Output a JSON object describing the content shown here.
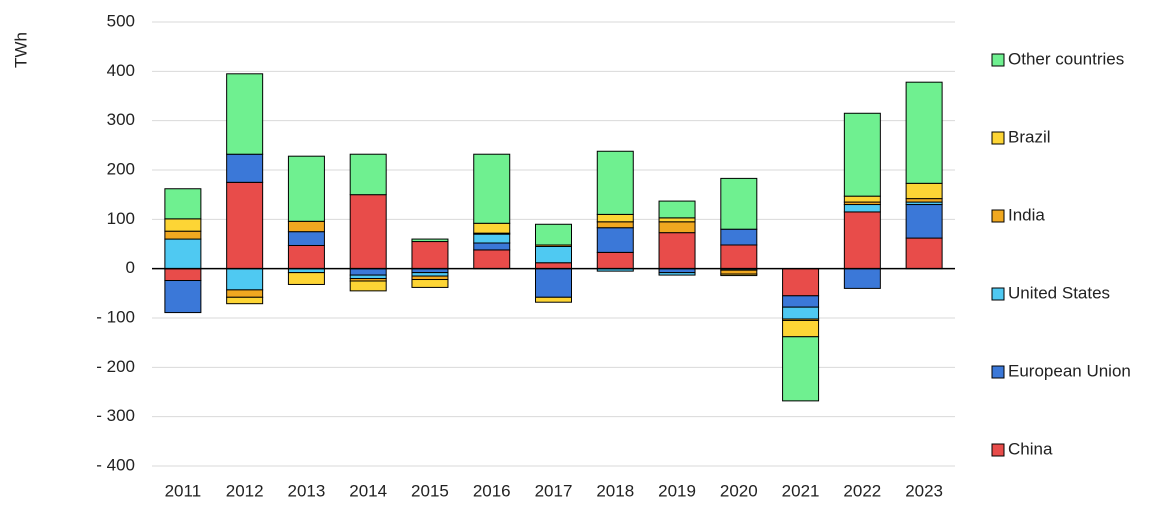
{
  "chart_data": {
    "type": "bar",
    "stacked": true,
    "y_label": "TWh",
    "categories": [
      "2011",
      "2012",
      "2013",
      "2014",
      "2015",
      "2016",
      "2017",
      "2018",
      "2019",
      "2020",
      "2021",
      "2022",
      "2023"
    ],
    "series": [
      {
        "name": "China",
        "color": "#e84c4a",
        "values": [
          -24,
          175,
          47,
          150,
          55,
          38,
          12,
          33,
          73,
          48,
          -55,
          115,
          62
        ]
      },
      {
        "name": "European Union",
        "color": "#3b78d8",
        "values": [
          -65,
          57,
          28,
          -13,
          -8,
          14,
          -58,
          50,
          -8,
          32,
          -23,
          -40,
          68
        ]
      },
      {
        "name": "United States",
        "color": "#4fc9f2",
        "values": [
          60,
          -43,
          -8,
          -7,
          -7,
          18,
          33,
          -5,
          -5,
          -3,
          -24,
          15,
          5
        ]
      },
      {
        "name": "India",
        "color": "#f0a820",
        "values": [
          16,
          -15,
          21,
          -5,
          -7,
          2,
          3,
          12,
          22,
          -8,
          -3,
          5,
          7
        ]
      },
      {
        "name": "Brazil",
        "color": "#fdd535",
        "values": [
          25,
          -13,
          -24,
          -20,
          -16,
          20,
          -10,
          15,
          8,
          -3,
          -33,
          12,
          31
        ]
      },
      {
        "name": "Other countries",
        "color": "#6ff090",
        "values": [
          61,
          163,
          132,
          82,
          5,
          140,
          42,
          128,
          34,
          103,
          -130,
          168,
          205
        ]
      }
    ],
    "ylim": [
      -400,
      500
    ],
    "yticks": [
      {
        "value": -400,
        "label": "- 400"
      },
      {
        "value": -300,
        "label": "- 300"
      },
      {
        "value": -200,
        "label": "- 200"
      },
      {
        "value": -100,
        "label": "- 100"
      },
      0,
      100,
      200,
      300,
      400,
      500
    ],
    "grid": true,
    "legend": "right"
  }
}
